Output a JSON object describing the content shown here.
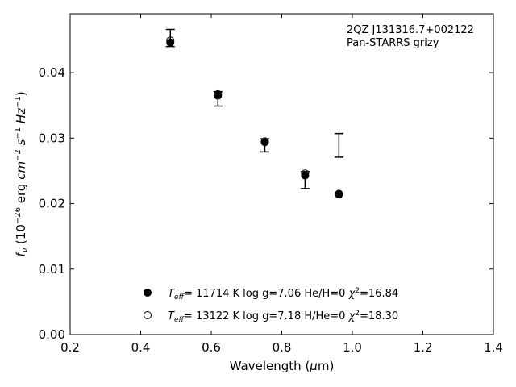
{
  "chart_data": {
    "type": "scatter",
    "xlabel": "Wavelength (μm)",
    "ylabel": "f_ν (10^-26 erg cm^-2 s^-1 Hz^-1)",
    "xlim": [
      0.2,
      1.4
    ],
    "ylim": [
      0.0,
      0.049
    ],
    "xticks": [
      "0.2",
      "0.4",
      "0.6",
      "0.8",
      "1.0",
      "1.2",
      "1.4"
    ],
    "yticks": [
      "0.00",
      "0.01",
      "0.02",
      "0.03",
      "0.04"
    ],
    "grid": false,
    "annotation": [
      "2QZ J131316.7+002122",
      "Pan-STARRS grizy"
    ],
    "observed": {
      "x": [
        0.484,
        0.619,
        0.752,
        0.866,
        0.962
      ],
      "y": [
        0.0453,
        0.036,
        0.0289,
        0.0236,
        0.0289
      ],
      "err": [
        0.0013,
        0.0011,
        0.001,
        0.0013,
        0.0018
      ]
    },
    "series": [
      {
        "name": "T_eff= 11714 K  log g=7.06  He/H=0  χ²=16.84",
        "marker": "filled-circle",
        "x": [
          0.484,
          0.619,
          0.752,
          0.866,
          0.962
        ],
        "y": [
          0.0446,
          0.0365,
          0.0294,
          0.0243,
          0.0214
        ]
      },
      {
        "name": "T_eff= 13122 K  log g=7.18  H/He=0  χ²=18.30",
        "marker": "open-circle",
        "x": [
          0.484,
          0.619,
          0.752,
          0.866,
          0.962
        ],
        "y": [
          0.0449,
          0.0367,
          0.0295,
          0.0246,
          0.0215
        ]
      }
    ],
    "legend_position": "lower-center"
  }
}
